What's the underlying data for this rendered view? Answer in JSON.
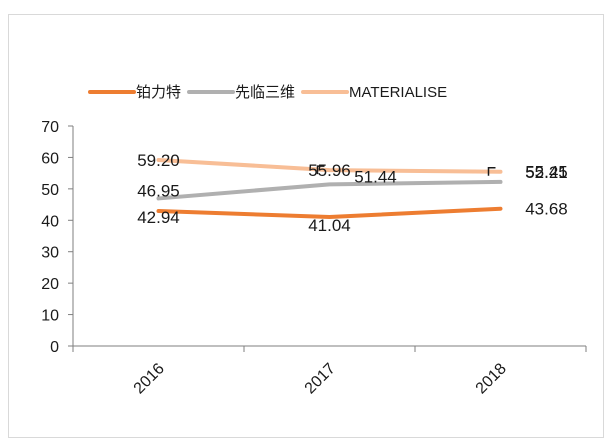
{
  "chart_data": {
    "type": "line",
    "categories": [
      "2016",
      "2017",
      "2018"
    ],
    "ylim": [
      0,
      70
    ],
    "yticks": [
      0,
      10,
      20,
      30,
      40,
      50,
      60,
      70
    ],
    "legend_position": "top",
    "grid": false,
    "series": [
      {
        "name": "铂力特",
        "values": [
          42.94,
          41.04,
          43.68
        ],
        "labels": [
          "42.94",
          "41.04",
          "43.68"
        ],
        "color": "#ed7d31"
      },
      {
        "name": "先临三维",
        "values": [
          46.95,
          51.44,
          52.21
        ],
        "labels": [
          "46.95",
          "51.44",
          "52.21"
        ],
        "color": "#b0b0b0"
      },
      {
        "name": "MATERIALISE",
        "values": [
          59.2,
          55.96,
          55.45
        ],
        "labels": [
          "59.20",
          "55.96",
          "55.45"
        ],
        "color": "#f8be96"
      }
    ]
  }
}
